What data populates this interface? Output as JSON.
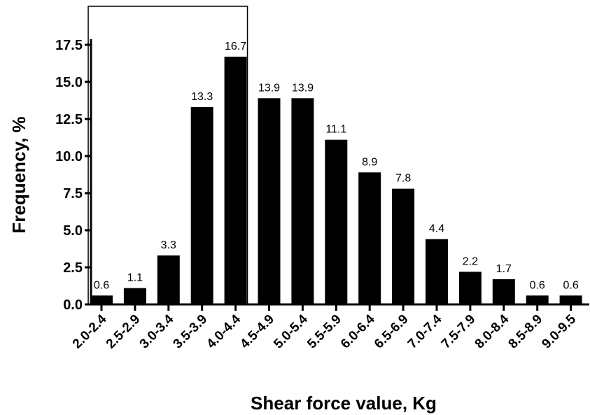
{
  "chart_data": {
    "type": "bar",
    "title": "",
    "xlabel": "Shear force value, Kg",
    "ylabel": "Frequency, %",
    "ylim": [
      0,
      17.5
    ],
    "yticks": [
      "0.0",
      "2.5",
      "5.0",
      "7.5",
      "10.0",
      "12.5",
      "15.0",
      "17.5"
    ],
    "categories": [
      "2.0-2.4",
      "2.5-2.9",
      "3.0-3.4",
      "3.5-3.9",
      "4.0-4.4",
      "4.5-4.9",
      "5.0-5.4",
      "5.5-5.9",
      "6.0-6.4",
      "6.5-6.9",
      "7.0-7.4",
      "7.5-7.9",
      "8.0-8.4",
      "8.5-8.9",
      "9.0-9.5"
    ],
    "values": [
      0.6,
      1.1,
      3.3,
      13.3,
      16.7,
      13.9,
      13.9,
      11.1,
      8.9,
      7.8,
      4.4,
      2.2,
      1.7,
      0.6,
      0.6
    ],
    "data_labels": [
      "0.6",
      "1.1",
      "3.3",
      "13.3",
      "16.7",
      "13.9",
      "13.9",
      "11.1",
      "8.9",
      "7.8",
      "4.4",
      "2.2",
      "1.7",
      "0.6",
      "0.6"
    ],
    "highlight_range": [
      "2.0-2.4",
      "4.0-4.4"
    ],
    "bar_color": "#000000",
    "grid": false,
    "legend": "none"
  }
}
